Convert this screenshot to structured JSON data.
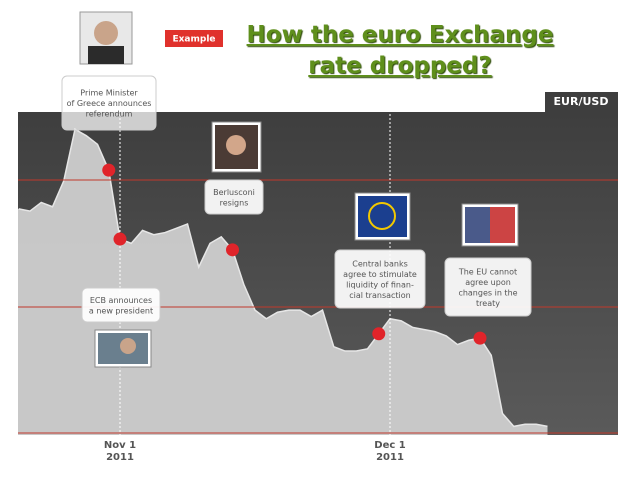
{
  "chart_data": {
    "type": "area",
    "title": "How the euro Exchange rate dropped?",
    "badge": "Example",
    "y_label": "EUR/USD",
    "categories": [
      null,
      null,
      null,
      null,
      null,
      null,
      null,
      null,
      null,
      "Nov 1\n2011",
      null,
      null,
      null,
      null,
      null,
      null,
      null,
      null,
      null,
      null,
      null,
      null,
      null,
      null,
      null,
      null,
      null,
      null,
      null,
      null,
      null,
      null,
      null,
      "Dec 1\n2011",
      null,
      null,
      null,
      null,
      null,
      null,
      null,
      null,
      null,
      null,
      null,
      null,
      null,
      null
    ],
    "values": [
      1.385,
      1.384,
      1.388,
      1.386,
      1.398,
      1.422,
      1.419,
      1.415,
      1.403,
      1.371,
      1.369,
      1.375,
      1.373,
      1.374,
      1.376,
      1.378,
      1.358,
      1.369,
      1.372,
      1.366,
      1.35,
      1.338,
      1.334,
      1.337,
      1.338,
      1.338,
      1.335,
      1.338,
      1.321,
      1.319,
      1.319,
      1.32,
      1.327,
      1.334,
      1.333,
      1.33,
      1.329,
      1.328,
      1.326,
      1.322,
      1.324,
      1.325,
      1.317,
      1.29,
      1.284,
      1.285,
      1.285,
      1.284
    ],
    "color": "#cfcfcf",
    "ylim": [
      1.28,
      1.43
    ],
    "annotations": [
      "Prime Minister\nof Greece announces\nreferendum",
      "ECB announces\na new president",
      "Berlusconi\nresigns",
      "Central banks\nagree to stimulate\nliquidity of finan-\ncial transaction",
      "The EU cannot\nagree upon\nchanges in the\ntreaty"
    ]
  }
}
